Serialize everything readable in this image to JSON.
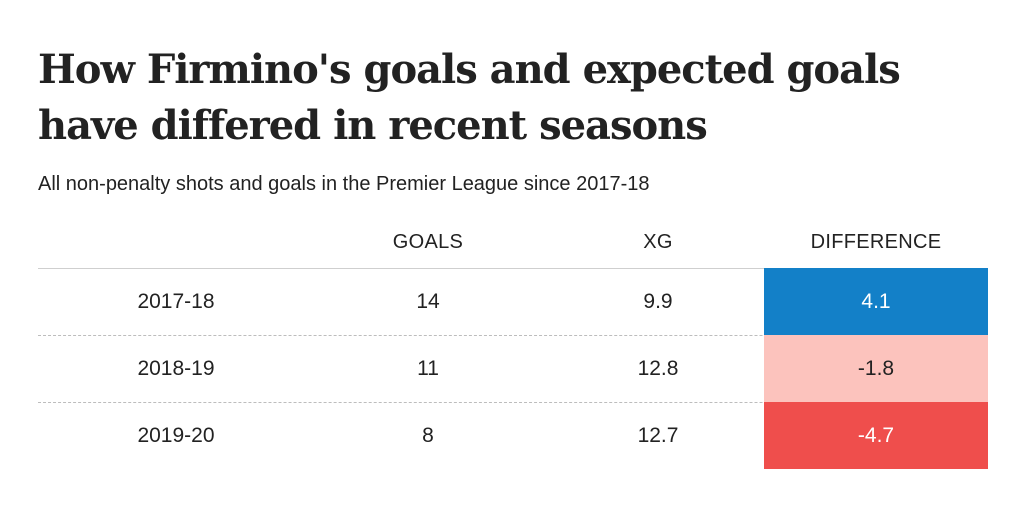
{
  "title": "How Firmino's goals and expected goals have differed in recent seasons",
  "subtitle": "All non-penalty shots and goals in the Premier League since 2017-18",
  "colors": {
    "positive_strong": "#1380c8",
    "negative_light": "#fcc3bd",
    "negative_strong": "#ef4e4c"
  },
  "chart_data": {
    "type": "table",
    "columns": [
      "",
      "GOALS",
      "XG",
      "DIFFERENCE"
    ],
    "rows": [
      {
        "season": "2017-18",
        "goals": "14",
        "xg": "9.9",
        "difference": "4.1",
        "fill": "#1380c8",
        "text_color": "#ffffff"
      },
      {
        "season": "2018-19",
        "goals": "11",
        "xg": "12.8",
        "difference": "-1.8",
        "fill": "#fcc3bd",
        "text_color": "#222222"
      },
      {
        "season": "2019-20",
        "goals": "8",
        "xg": "12.7",
        "difference": "-4.7",
        "fill": "#ef4e4c",
        "text_color": "#ffffff"
      }
    ]
  }
}
